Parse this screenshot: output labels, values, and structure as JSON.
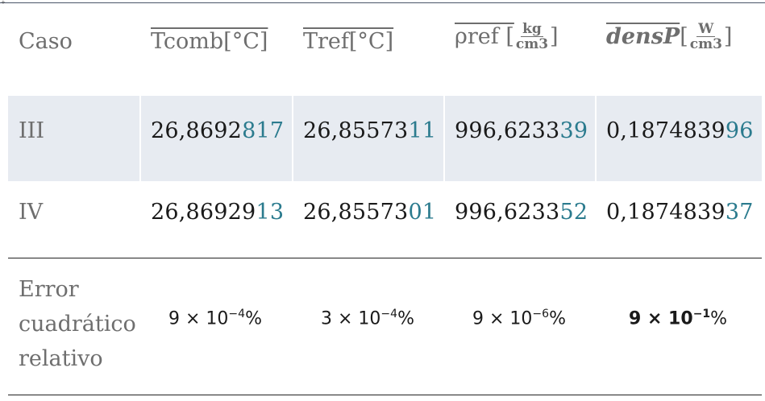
{
  "corner_mark": "+",
  "headers": {
    "caso": "Caso",
    "tcomb": "Tcomb[°C]",
    "tref": "Tref[°C]",
    "rho_prefix": "ρref [",
    "rho_num": "kg",
    "rho_den": "cm3",
    "rho_suffix": "]",
    "dens_prefix": "densP",
    "dens_bracket": "[",
    "dens_num": "W",
    "dens_den": "cm3",
    "dens_suffix": "]"
  },
  "rows": [
    {
      "label": "III",
      "values": [
        {
          "plain": "26,8692",
          "teal": "817"
        },
        {
          "plain": "26,85573",
          "teal": "11"
        },
        {
          "plain": "996,6233",
          "teal": "39"
        },
        {
          "plain": "0,1874839",
          "teal": "96"
        }
      ]
    },
    {
      "label": "IV",
      "values": [
        {
          "plain": "26,86929",
          "teal": "13"
        },
        {
          "plain": "26,85573",
          "teal": "01"
        },
        {
          "plain": "996,6233",
          "teal": "52"
        },
        {
          "plain": "0,1874839",
          "teal": "37"
        }
      ]
    }
  ],
  "error": {
    "label_line1": "Error",
    "label_line2": "cuadrático",
    "label_line3": "relativo",
    "cells": [
      {
        "base": "9 × 10",
        "exp": "−4",
        "unit": "%"
      },
      {
        "base": "3 × 10",
        "exp": "−4",
        "unit": "%"
      },
      {
        "base": "9 × 10",
        "exp": "−6",
        "unit": "%"
      },
      {
        "base": "9 × 10",
        "exp": "−1",
        "unit": "%"
      }
    ]
  }
}
